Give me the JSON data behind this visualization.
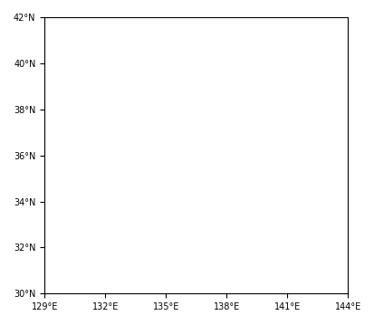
{
  "lon_min": 129,
  "lon_max": 144,
  "lat_min": 30,
  "lat_max": 42,
  "lon_ticks": [
    129,
    132,
    135,
    138,
    141,
    144
  ],
  "lat_ticks": [
    30,
    32,
    34,
    36,
    38,
    40,
    42
  ],
  "land_color": "#000000",
  "ocean_color": "#ffffff",
  "station_color": "#ffffff",
  "station_marker": ".",
  "station_size": 1.5,
  "background_color": "#ffffff",
  "figsize": [
    4.14,
    3.59
  ],
  "dpi": 100
}
